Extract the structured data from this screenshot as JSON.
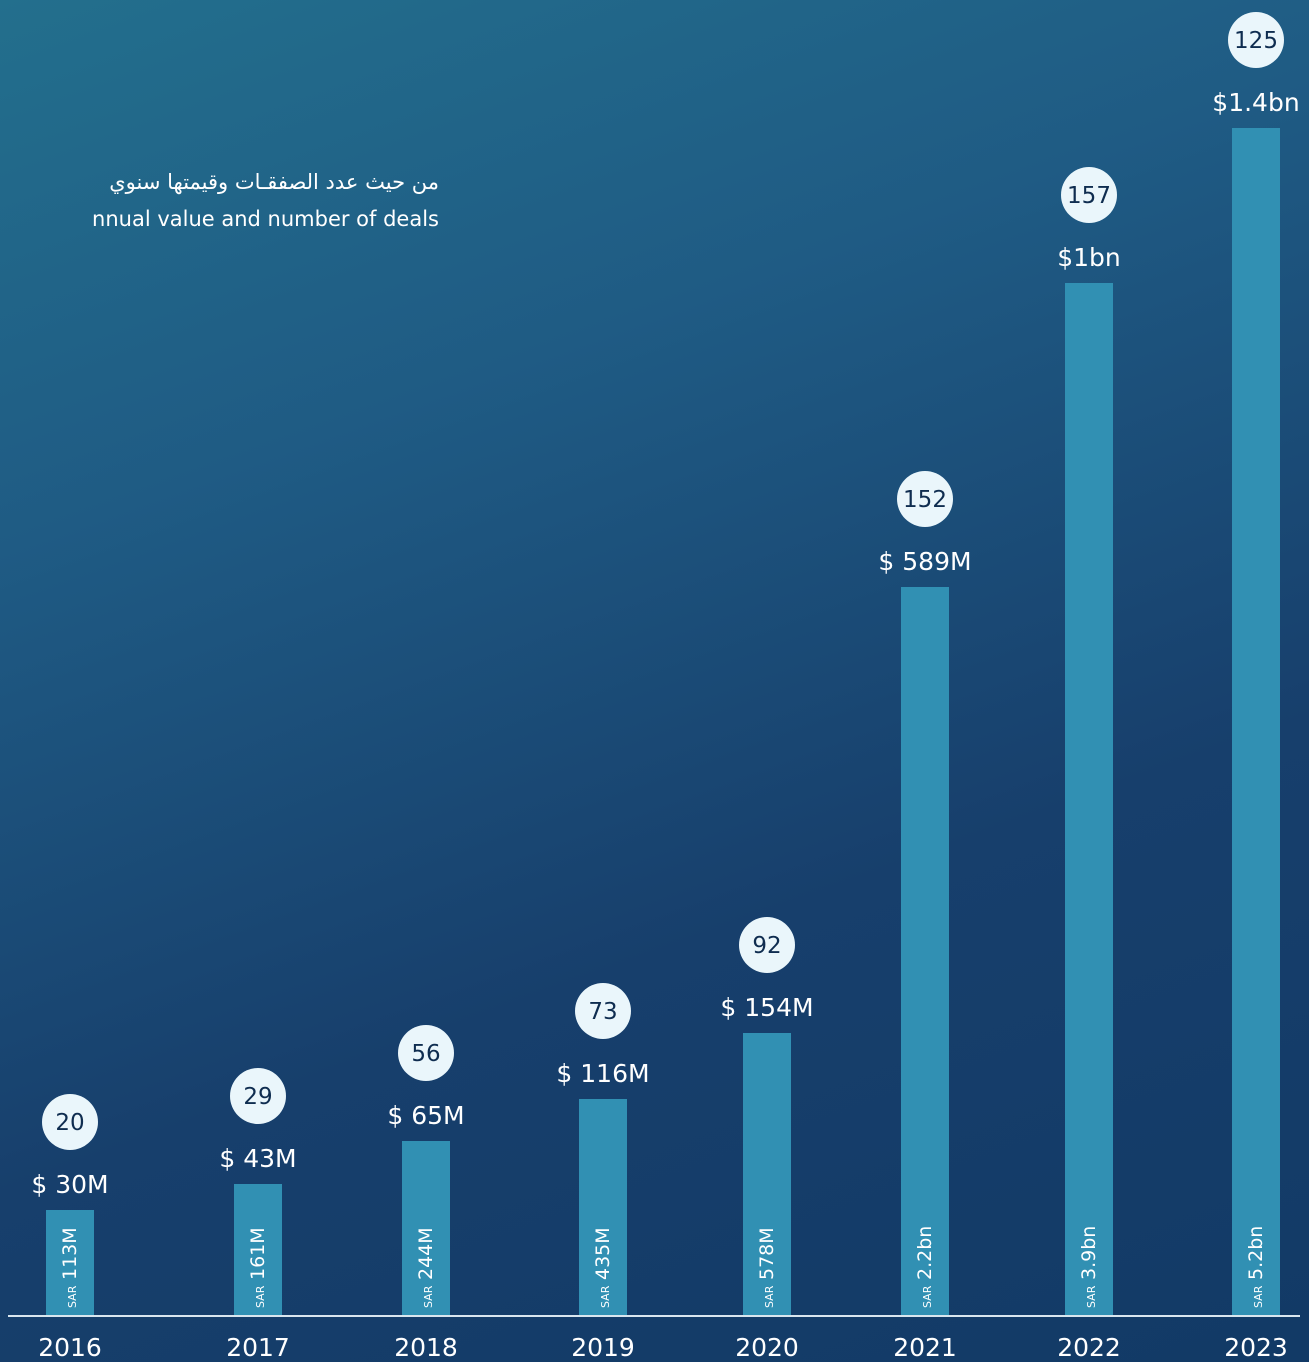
{
  "subtitle_ar": "من حيث عدد الصفقـات وقيمتها سنوي",
  "subtitle_en": "nnual value and number of deals",
  "colors": {
    "bar": "#3190b3",
    "circle": "#eaf6fb",
    "baseline": "#d9e6ef"
  },
  "chart_data": {
    "type": "bar",
    "categories": [
      "2016",
      "2017",
      "2018",
      "2019",
      "2020",
      "2021",
      "2022",
      "2023"
    ],
    "series": [
      {
        "values": [
          30,
          43,
          65,
          116,
          154,
          589,
          1000,
          1400
        ]
      }
    ],
    "value_unit": "USD millions",
    "value_labels": [
      "$ 30M",
      "$ 43M",
      "$ 65M",
      "$ 116M",
      "$ 154M",
      "$ 589M",
      "$1bn",
      "$1.4bn"
    ],
    "sar_currency": "SAR",
    "sar_labels": [
      "113M",
      "161M",
      "244M",
      "435M",
      "578M",
      "2.2bn",
      "3.9bn",
      "5.2bn"
    ],
    "deal_counts": [
      20,
      29,
      56,
      73,
      92,
      152,
      157,
      125
    ],
    "grid": false,
    "legend": "none"
  }
}
